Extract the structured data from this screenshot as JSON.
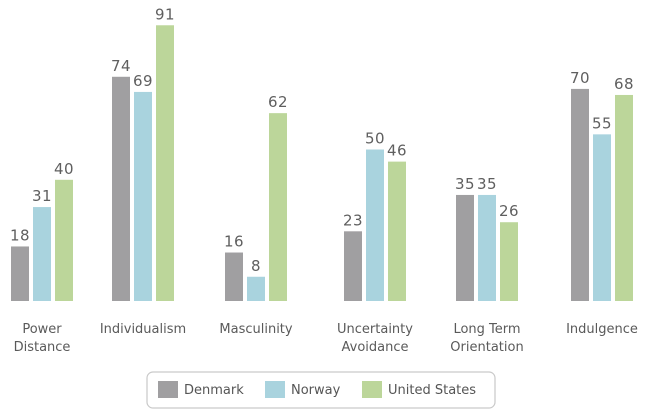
{
  "chart_data": {
    "type": "bar",
    "categories": [
      [
        "Power",
        "Distance"
      ],
      [
        "Individualism"
      ],
      [
        "Masculinity"
      ],
      [
        "Uncertainty",
        "Avoidance"
      ],
      [
        "Long Term",
        "Orientation"
      ],
      [
        "Indulgence"
      ]
    ],
    "series": [
      {
        "name": "Denmark",
        "color": "#a09fa1",
        "values": [
          18,
          74,
          16,
          23,
          35,
          70
        ]
      },
      {
        "name": "Norway",
        "color": "#a9d3de",
        "values": [
          31,
          69,
          8,
          50,
          35,
          55
        ]
      },
      {
        "name": "United States",
        "color": "#bcd69a",
        "values": [
          40,
          91,
          62,
          46,
          26,
          68
        ]
      }
    ],
    "ylim": [
      0,
      100
    ],
    "legend_position": "bottom-center",
    "grid": false,
    "title": "",
    "xlabel": "",
    "ylabel": ""
  }
}
